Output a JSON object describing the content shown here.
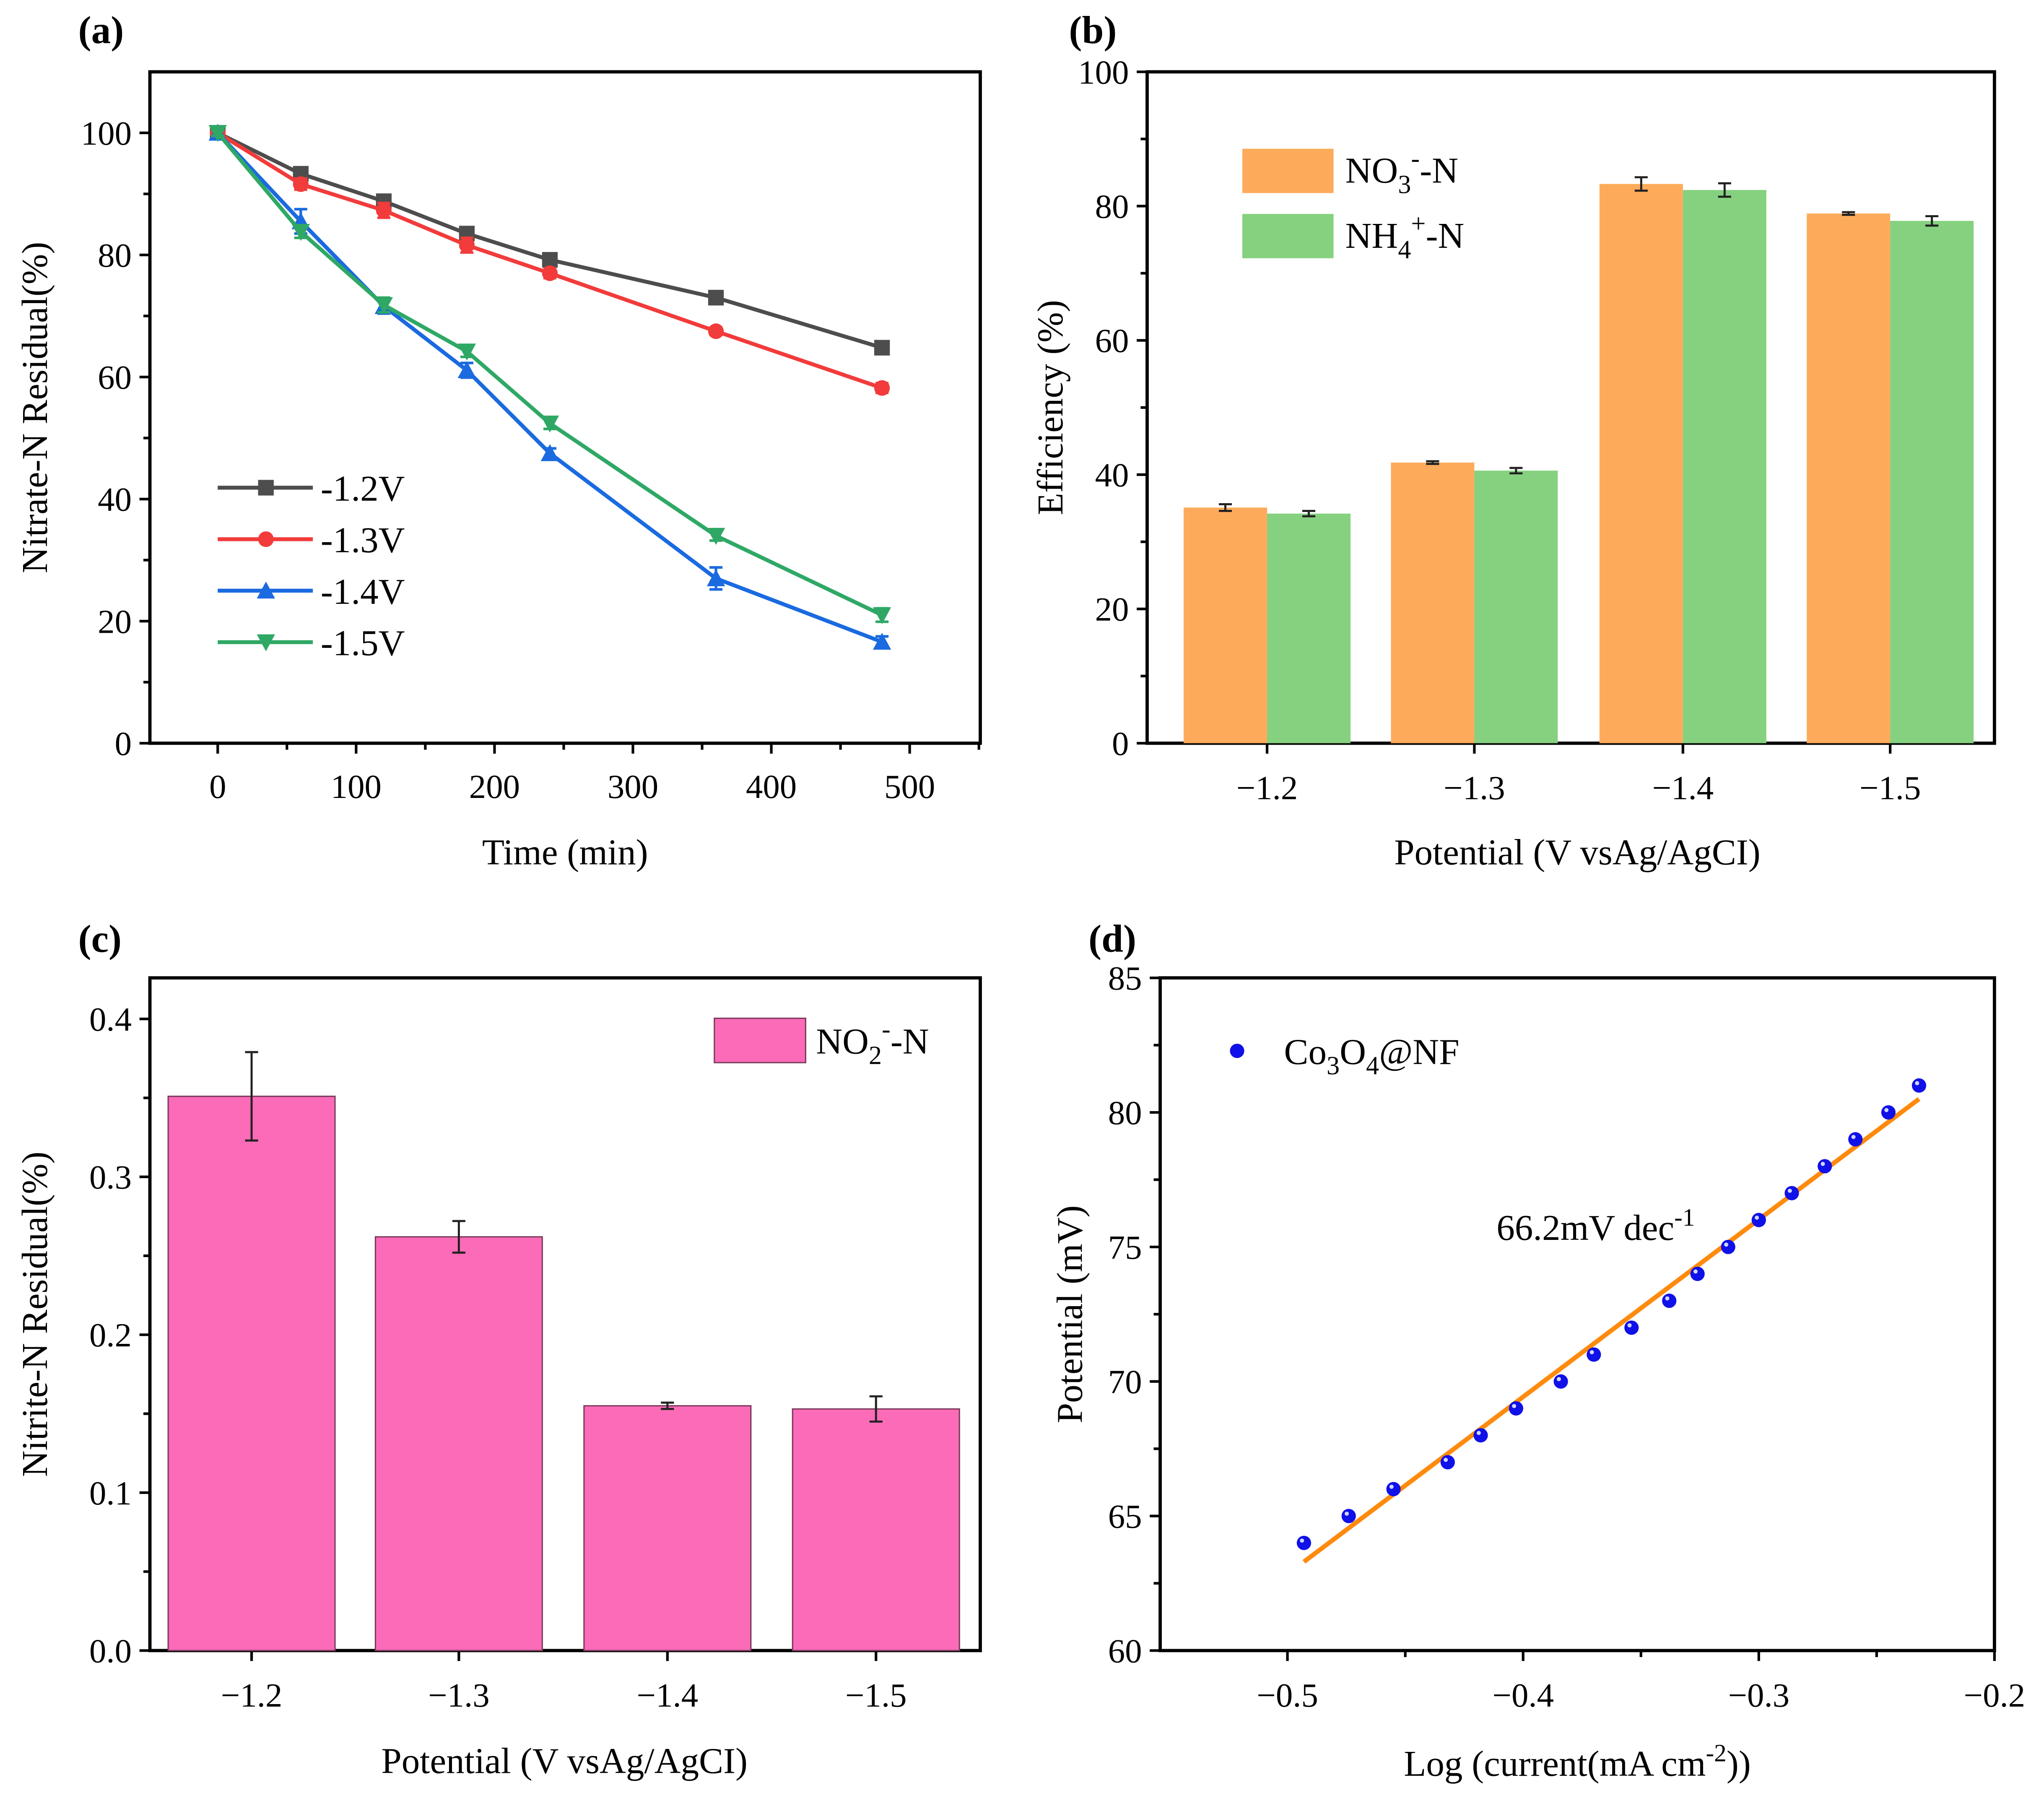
{
  "chart_data": [
    {
      "panel_label": "(a)",
      "type": "line",
      "xlabel": "Time (min)",
      "ylabel": "Nitrate-N Residual(%)",
      "xlim": [
        -49,
        551
      ],
      "ylim": [
        0,
        110
      ],
      "xticks": [
        0,
        100,
        200,
        300,
        400,
        500
      ],
      "yticks": [
        0,
        20,
        40,
        60,
        80,
        100
      ],
      "x": [
        0,
        60,
        120,
        180,
        240,
        360,
        480
      ],
      "legend": "bottom-left",
      "series": [
        {
          "name": "-1.2V",
          "color": "#4d4d4d",
          "marker": "square",
          "values": [
            100,
            93.3,
            88.8,
            83.5,
            79.2,
            73.0,
            64.8
          ],
          "errors": [
            0.5,
            0.8,
            0.8,
            0.8,
            0.7,
            0.6,
            0.7
          ]
        },
        {
          "name": "-1.3V",
          "color": "#f23b3b",
          "marker": "circle",
          "values": [
            100,
            91.6,
            87.3,
            81.6,
            77.0,
            67.5,
            58.2
          ],
          "errors": [
            0.5,
            0.9,
            1.2,
            1.2,
            0.8,
            0.6,
            0.8
          ]
        },
        {
          "name": "-1.4V",
          "color": "#1a6ae0",
          "marker": "triangle-up",
          "values": [
            100,
            85.5,
            71.6,
            61.1,
            47.5,
            27.0,
            16.6
          ],
          "errors": [
            0.6,
            2.0,
            1.2,
            1.2,
            0.8,
            1.8,
            0.9
          ]
        },
        {
          "name": "-1.5V",
          "color": "#2fa866",
          "marker": "triangle-down",
          "values": [
            100,
            83.8,
            71.8,
            64.2,
            52.4,
            34.0,
            21.0
          ],
          "errors": [
            0.5,
            1.0,
            1.2,
            0.9,
            0.9,
            0.8,
            1.1
          ]
        }
      ]
    },
    {
      "panel_label": "(b)",
      "type": "bar",
      "xlabel": "Potential (V vsAg/AgCI)",
      "ylabel": "Efficiency (%)",
      "ylim": [
        0,
        100
      ],
      "yticks": [
        0,
        20,
        40,
        60,
        80,
        100
      ],
      "categories": [
        "−1.2",
        "−1.3",
        "−1.4",
        "−1.5"
      ],
      "legend": "top-left",
      "series": [
        {
          "name": "NO3-N",
          "name_main": "NO",
          "name_sub": "3",
          "name_sup": "-",
          "name_tail": "-N",
          "color": "#fdab5b",
          "values": [
            35.1,
            41.8,
            83.3,
            78.9
          ],
          "errors": [
            0.5,
            0.2,
            1.0,
            0.2
          ]
        },
        {
          "name": "NH4+-N",
          "name_main": "NH",
          "name_sub": "4",
          "name_sup": "+",
          "name_tail": "-N",
          "color": "#85d17f",
          "values": [
            34.2,
            40.6,
            82.4,
            77.8
          ],
          "errors": [
            0.4,
            0.4,
            1.0,
            0.7
          ]
        }
      ]
    },
    {
      "panel_label": "(c)",
      "type": "bar",
      "xlabel": "Potential (V vsAg/AgCI)",
      "ylabel": "Nitrite-N Residual(%)",
      "ylim": [
        0,
        0.426
      ],
      "yticks": [
        "0.0",
        "0.1",
        "0.2",
        "0.3",
        "0.4"
      ],
      "categories": [
        "−1.2",
        "−1.3",
        "−1.4",
        "−1.5"
      ],
      "legend": "top-right",
      "series": [
        {
          "name": "NO2--N",
          "name_main": "NO",
          "name_sub": "2",
          "name_sup": "-",
          "name_tail": "-N",
          "color": "#fb6bb8",
          "values": [
            0.351,
            0.262,
            0.155,
            0.153
          ],
          "errors": [
            0.028,
            0.01,
            0.002,
            0.008
          ]
        }
      ]
    },
    {
      "panel_label": "(d)",
      "type": "scatter",
      "xlabel_main": "Log (current(mA cm",
      "xlabel_sup": "-2",
      "xlabel_tail": "))",
      "ylabel": "Potential (mV)",
      "xlim": [
        -0.554,
        -0.2
      ],
      "ylim": [
        60,
        85
      ],
      "xticks": [
        "−0.5",
        "−0.4",
        "−0.3",
        "−0.2"
      ],
      "yticks": [
        60,
        65,
        70,
        75,
        80,
        85
      ],
      "legend": "top-left",
      "series": [
        {
          "name": "Co3O4@NF",
          "name_parts": [
            "Co",
            "3",
            "O",
            "4",
            "@NF"
          ],
          "color": "#1010e8",
          "x": [
            -0.493,
            -0.474,
            -0.455,
            -0.432,
            -0.418,
            -0.403,
            -0.384,
            -0.37,
            -0.354,
            -0.338,
            -0.326,
            -0.313,
            -0.3,
            -0.286,
            -0.272,
            -0.259,
            -0.245,
            -0.232
          ],
          "y": [
            64,
            65,
            66,
            67,
            68,
            69,
            70,
            71,
            72,
            73,
            74,
            75,
            76,
            77,
            78,
            79,
            80,
            81
          ]
        }
      ],
      "fit": {
        "color": "#ff8a0d",
        "x": [
          -0.493,
          -0.232
        ],
        "y": [
          63.3,
          80.5
        ],
        "label_main": "66.2mV dec",
        "label_sup": "-1"
      }
    }
  ]
}
